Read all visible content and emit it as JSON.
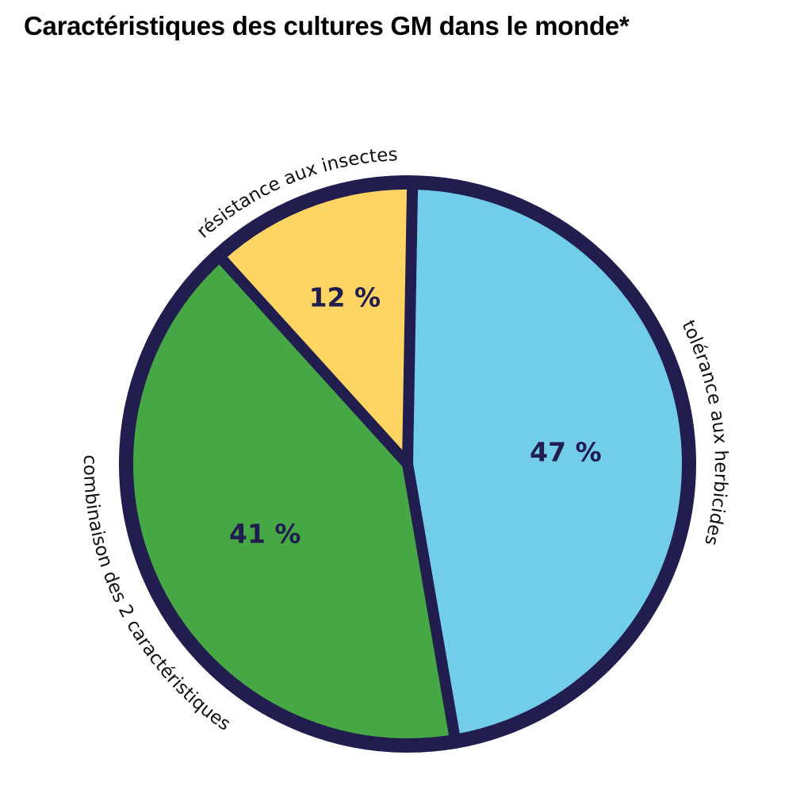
{
  "chart_data": {
    "type": "pie",
    "title": "Caractéristiques des cultures GM dans le monde*",
    "slices": [
      {
        "label": "tolérance aux herbicides",
        "value": 47,
        "display": "47 %",
        "color": "#72cdea"
      },
      {
        "label": "combinaison des 2 caractéristiques",
        "value": 41,
        "display": "41 %",
        "color": "#45a845"
      },
      {
        "label": "résistance aux insectes",
        "value": 12,
        "display": "12 %",
        "color": "#fed462"
      }
    ],
    "start_angle_deg": 1,
    "direction": "clockwise",
    "border_color": "#221d4f",
    "label_color": "#221d4f"
  }
}
